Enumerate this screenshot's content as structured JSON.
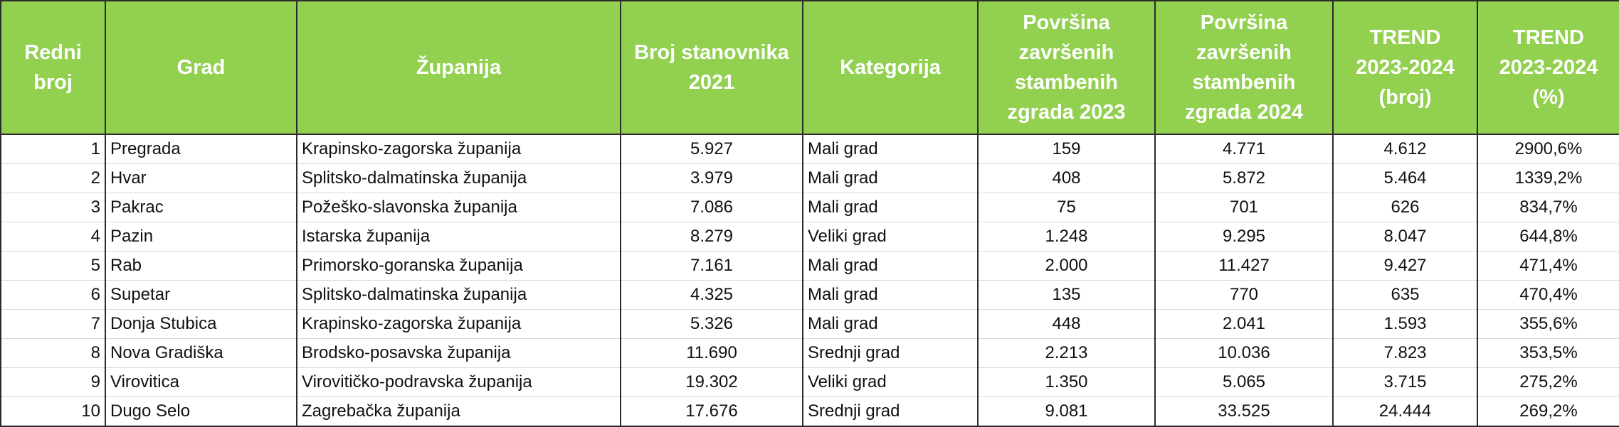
{
  "table": {
    "headers": [
      "Redni broj",
      "Grad",
      "Županija",
      "Broj stanovnika 2021",
      "Kategorija",
      "Površina završenih stambenih zgrada 2023",
      "Površina završenih stambenih zgrada 2024",
      "TREND 2023-2024 (broj)",
      "TREND 2023-2024 (%)"
    ],
    "rows": [
      [
        "1",
        "Pregrada",
        "Krapinsko-zagorska županija",
        "5.927",
        "Mali grad",
        "159",
        "4.771",
        "4.612",
        "2900,6%"
      ],
      [
        "2",
        "Hvar",
        "Splitsko-dalmatinska županija",
        "3.979",
        "Mali grad",
        "408",
        "5.872",
        "5.464",
        "1339,2%"
      ],
      [
        "3",
        "Pakrac",
        "Požeško-slavonska županija",
        "7.086",
        "Mali grad",
        "75",
        "701",
        "626",
        "834,7%"
      ],
      [
        "4",
        "Pazin",
        "Istarska županija",
        "8.279",
        "Veliki grad",
        "1.248",
        "9.295",
        "8.047",
        "644,8%"
      ],
      [
        "5",
        "Rab",
        "Primorsko-goranska županija",
        "7.161",
        "Mali grad",
        "2.000",
        "11.427",
        "9.427",
        "471,4%"
      ],
      [
        "6",
        "Supetar",
        "Splitsko-dalmatinska županija",
        "4.325",
        "Mali grad",
        "135",
        "770",
        "635",
        "470,4%"
      ],
      [
        "7",
        "Donja Stubica",
        "Krapinsko-zagorska županija",
        "5.326",
        "Mali grad",
        "448",
        "2.041",
        "1.593",
        "355,6%"
      ],
      [
        "8",
        "Nova Gradiška",
        "Brodsko-posavska županija",
        "11.690",
        "Srednji grad",
        "2.213",
        "10.036",
        "7.823",
        "353,5%"
      ],
      [
        "9",
        "Virovitica",
        "Virovitičko-podravska županija",
        "19.302",
        "Veliki grad",
        "1.350",
        "5.065",
        "3.715",
        "275,2%"
      ],
      [
        "10",
        "Dugo Selo",
        "Zagrebačka županija",
        "17.676",
        "Srednji grad",
        "9.081",
        "33.525",
        "24.444",
        "269,2%"
      ]
    ]
  }
}
